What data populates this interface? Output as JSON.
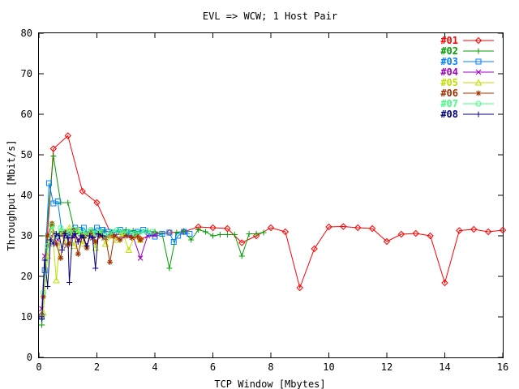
{
  "chart_data": {
    "type": "line",
    "title": "EVL => WCW; 1 Host Pair",
    "xlabel": "TCP Window [Mbytes]",
    "ylabel": "Throughput [Mbit/s]",
    "xlim": [
      0,
      16
    ],
    "ylim": [
      0,
      80
    ],
    "xticks": [
      "0",
      "2",
      "4",
      "6",
      "8",
      "10",
      "12",
      "14",
      "16"
    ],
    "yticks": [
      "0",
      "10",
      "20",
      "30",
      "40",
      "50",
      "60",
      "70",
      "80"
    ],
    "grid": false,
    "legend_position": "top-right",
    "series": [
      {
        "name": "#01",
        "color": "#ff0000",
        "marker": "diamond",
        "points": [
          [
            0.1,
            10.5
          ],
          [
            0.5,
            51.5
          ],
          [
            1.0,
            54.7
          ],
          [
            1.5,
            41.0
          ],
          [
            2.0,
            38.2
          ],
          [
            2.5,
            30.2
          ],
          [
            3.0,
            30.5
          ],
          [
            3.5,
            29.2
          ],
          [
            4.0,
            30.5
          ],
          [
            4.5,
            30.8
          ],
          [
            5.0,
            31.0
          ],
          [
            5.5,
            32.2
          ],
          [
            6.0,
            32.0
          ],
          [
            6.5,
            31.8
          ],
          [
            7.0,
            28.3
          ],
          [
            7.5,
            30.0
          ],
          [
            8.0,
            32.0
          ],
          [
            8.5,
            31.0
          ],
          [
            9.0,
            17.2
          ],
          [
            9.5,
            26.8
          ],
          [
            10.0,
            32.2
          ],
          [
            10.5,
            32.3
          ],
          [
            11.0,
            32.0
          ],
          [
            11.5,
            31.8
          ],
          [
            12.0,
            28.6
          ],
          [
            12.5,
            30.4
          ],
          [
            13.0,
            30.6
          ],
          [
            13.5,
            30.0
          ],
          [
            14.0,
            18.4
          ],
          [
            14.5,
            31.3
          ],
          [
            15.0,
            31.6
          ],
          [
            15.5,
            31.0
          ],
          [
            16.0,
            31.4
          ]
        ]
      },
      {
        "name": "#02",
        "color": "#00a000",
        "marker": "plus",
        "points": [
          [
            0.1,
            8.0
          ],
          [
            0.25,
            30.0
          ],
          [
            0.5,
            49.7
          ],
          [
            0.75,
            38.2
          ],
          [
            1.0,
            38.2
          ],
          [
            1.25,
            30.5
          ],
          [
            1.5,
            31.0
          ],
          [
            1.75,
            30.7
          ],
          [
            2.0,
            30.8
          ],
          [
            2.25,
            31.2
          ],
          [
            2.5,
            30.8
          ],
          [
            2.75,
            31.0
          ],
          [
            3.0,
            31.5
          ],
          [
            3.25,
            31.3
          ],
          [
            3.5,
            31.0
          ],
          [
            3.75,
            31.2
          ],
          [
            4.0,
            31.0
          ],
          [
            4.25,
            30.5
          ],
          [
            4.5,
            22.0
          ],
          [
            4.75,
            30.8
          ],
          [
            5.0,
            31.2
          ],
          [
            5.25,
            29.0
          ],
          [
            5.5,
            31.5
          ],
          [
            5.75,
            31.0
          ],
          [
            6.0,
            30.0
          ],
          [
            6.25,
            30.3
          ],
          [
            6.5,
            30.3
          ],
          [
            6.75,
            30.3
          ],
          [
            7.0,
            25.0
          ],
          [
            7.25,
            30.5
          ],
          [
            7.5,
            30.5
          ],
          [
            7.75,
            30.8
          ]
        ]
      },
      {
        "name": "#03",
        "color": "#0080ff",
        "marker": "square",
        "points": [
          [
            0.1,
            10.0
          ],
          [
            0.2,
            21.5
          ],
          [
            0.35,
            43.0
          ],
          [
            0.5,
            38.0
          ],
          [
            0.65,
            38.5
          ],
          [
            0.8,
            30.5
          ],
          [
            0.95,
            30.0
          ],
          [
            1.1,
            31.0
          ],
          [
            1.25,
            32.0
          ],
          [
            1.4,
            31.5
          ],
          [
            1.55,
            32.0
          ],
          [
            1.7,
            30.5
          ],
          [
            1.85,
            31.0
          ],
          [
            2.0,
            32.0
          ],
          [
            2.2,
            31.5
          ],
          [
            2.4,
            31.0
          ],
          [
            2.6,
            30.8
          ],
          [
            2.8,
            31.5
          ],
          [
            3.0,
            30.8
          ],
          [
            3.2,
            30.5
          ],
          [
            3.4,
            31.0
          ],
          [
            3.6,
            31.5
          ],
          [
            3.8,
            30.5
          ],
          [
            4.0,
            29.8
          ],
          [
            4.25,
            30.5
          ],
          [
            4.5,
            30.8
          ],
          [
            4.65,
            28.5
          ],
          [
            4.8,
            30.0
          ],
          [
            5.0,
            31.0
          ],
          [
            5.2,
            30.5
          ]
        ]
      },
      {
        "name": "#04",
        "color": "#a000c0",
        "marker": "x",
        "points": [
          [
            0.1,
            12.0
          ],
          [
            0.2,
            25.0
          ],
          [
            0.35,
            28.0
          ],
          [
            0.5,
            30.5
          ],
          [
            0.65,
            29.0
          ],
          [
            0.8,
            30.5
          ],
          [
            0.95,
            27.5
          ],
          [
            1.1,
            30.5
          ],
          [
            1.25,
            30.0
          ],
          [
            1.4,
            29.0
          ],
          [
            1.55,
            30.0
          ],
          [
            1.7,
            30.5
          ],
          [
            1.85,
            29.5
          ],
          [
            2.0,
            30.0
          ],
          [
            2.25,
            29.5
          ],
          [
            2.5,
            30.0
          ],
          [
            2.75,
            29.5
          ],
          [
            3.0,
            30.0
          ],
          [
            3.25,
            29.8
          ],
          [
            3.5,
            24.5
          ],
          [
            3.75,
            30.0
          ],
          [
            4.0,
            30.2
          ]
        ]
      },
      {
        "name": "#05",
        "color": "#c0e000",
        "marker": "triangle",
        "points": [
          [
            0.15,
            11.0
          ],
          [
            0.3,
            25.0
          ],
          [
            0.45,
            33.0
          ],
          [
            0.6,
            19.0
          ],
          [
            0.75,
            31.0
          ],
          [
            0.9,
            28.0
          ],
          [
            1.05,
            32.0
          ],
          [
            1.2,
            27.5
          ],
          [
            1.35,
            31.5
          ],
          [
            1.5,
            28.0
          ],
          [
            1.65,
            30.0
          ],
          [
            1.8,
            31.0
          ],
          [
            1.95,
            27.0
          ],
          [
            2.1,
            30.5
          ],
          [
            2.3,
            28.0
          ],
          [
            2.5,
            30.0
          ],
          [
            2.7,
            29.0
          ],
          [
            2.9,
            30.5
          ],
          [
            3.1,
            26.5
          ],
          [
            3.3,
            30.0
          ],
          [
            3.5,
            29.0
          ]
        ]
      },
      {
        "name": "#06",
        "color": "#a03000",
        "marker": "star",
        "points": [
          [
            0.15,
            15.0
          ],
          [
            0.3,
            30.0
          ],
          [
            0.45,
            33.0
          ],
          [
            0.6,
            28.0
          ],
          [
            0.75,
            24.5
          ],
          [
            0.9,
            31.0
          ],
          [
            1.05,
            28.0
          ],
          [
            1.2,
            31.5
          ],
          [
            1.35,
            25.5
          ],
          [
            1.5,
            30.0
          ],
          [
            1.65,
            27.0
          ],
          [
            1.8,
            31.0
          ],
          [
            1.95,
            28.5
          ],
          [
            2.1,
            30.0
          ],
          [
            2.3,
            29.5
          ],
          [
            2.45,
            23.5
          ],
          [
            2.6,
            30.0
          ],
          [
            2.8,
            29.0
          ],
          [
            3.0,
            30.0
          ],
          [
            3.2,
            29.5
          ],
          [
            3.4,
            30.0
          ],
          [
            3.5,
            29.0
          ]
        ]
      },
      {
        "name": "#07",
        "color": "#40ff80",
        "marker": "circle",
        "points": [
          [
            0.15,
            16.0
          ],
          [
            0.3,
            27.5
          ],
          [
            0.45,
            32.5
          ],
          [
            0.6,
            30.0
          ],
          [
            0.75,
            32.0
          ],
          [
            0.9,
            31.0
          ],
          [
            1.05,
            30.5
          ],
          [
            1.2,
            31.5
          ],
          [
            1.35,
            31.0
          ],
          [
            1.5,
            30.5
          ],
          [
            1.65,
            31.0
          ],
          [
            1.8,
            31.5
          ],
          [
            1.95,
            30.5
          ],
          [
            2.1,
            31.0
          ],
          [
            2.3,
            30.0
          ],
          [
            2.5,
            31.0
          ],
          [
            2.7,
            31.5
          ],
          [
            2.9,
            30.8
          ],
          [
            3.1,
            31.0
          ],
          [
            3.3,
            30.5
          ],
          [
            3.5,
            31.0
          ],
          [
            3.7,
            31.0
          ],
          [
            3.9,
            31.0
          ]
        ]
      },
      {
        "name": "#08",
        "color": "#000080",
        "marker": "plus",
        "points": [
          [
            0.1,
            9.5
          ],
          [
            0.2,
            24.0
          ],
          [
            0.3,
            17.5
          ],
          [
            0.4,
            29.0
          ],
          [
            0.5,
            28.0
          ],
          [
            0.6,
            30.5
          ],
          [
            0.7,
            30.0
          ],
          [
            0.8,
            26.5
          ],
          [
            0.9,
            30.5
          ],
          [
            1.0,
            29.5
          ],
          [
            1.05,
            18.5
          ],
          [
            1.15,
            29.5
          ],
          [
            1.25,
            30.5
          ],
          [
            1.35,
            28.5
          ],
          [
            1.45,
            30.0
          ],
          [
            1.55,
            29.5
          ],
          [
            1.65,
            27.5
          ],
          [
            1.75,
            30.0
          ],
          [
            1.85,
            29.5
          ],
          [
            1.95,
            22.0
          ],
          [
            2.05,
            30.5
          ],
          [
            2.2,
            30.0
          ]
        ]
      }
    ]
  }
}
